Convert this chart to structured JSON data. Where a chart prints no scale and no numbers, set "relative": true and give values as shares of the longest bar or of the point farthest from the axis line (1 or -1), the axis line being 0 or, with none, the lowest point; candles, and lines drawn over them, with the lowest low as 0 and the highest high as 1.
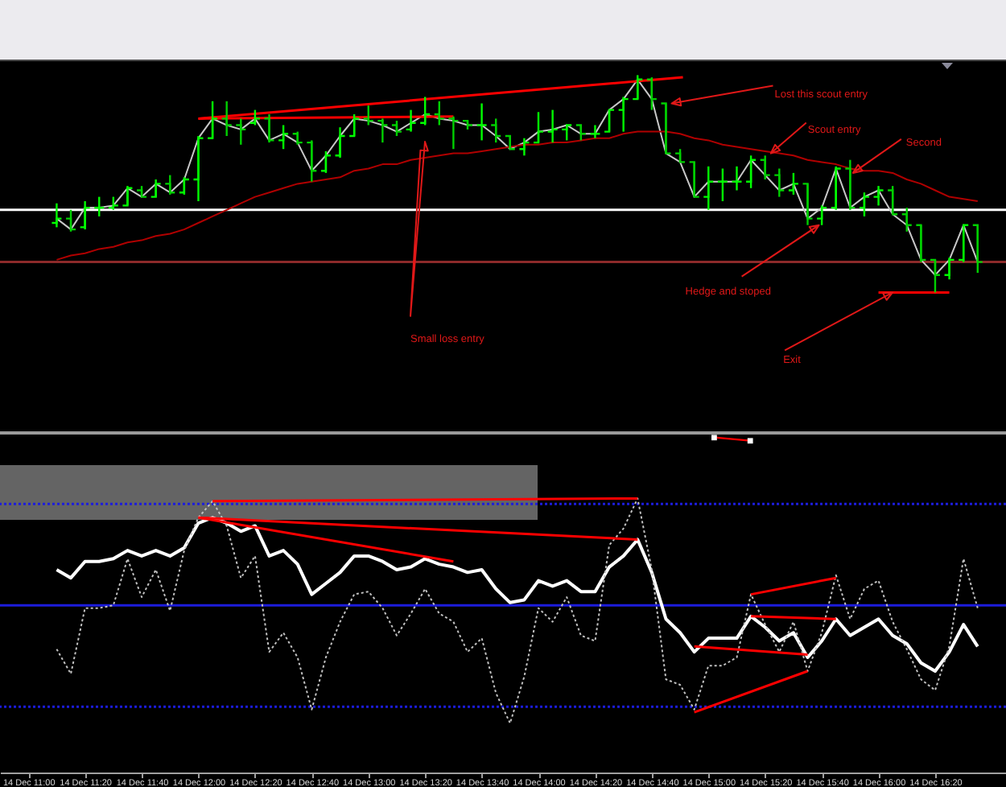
{
  "chart_data": [
    {
      "type": "candlestick",
      "relative": true,
      "tick_labels": false,
      "colors": [
        "#00ff00",
        "#00d000",
        "#00ff00",
        "#00ff00",
        "#00ff00",
        "#00ff00",
        "#00d000",
        "#00ff00",
        "#00d000",
        "#00ff00",
        "#00ff00",
        "#00ff00",
        "#00d000",
        "#00d000",
        "#00ff00",
        "#00d000",
        "#00ff00",
        "#00d000",
        "#00d000",
        "#00ff00",
        "#00ff00",
        "#00ff00",
        "#00d000",
        "#00d000",
        "#00d000",
        "#00ff00",
        "#00ff00",
        "#00d000",
        "#00d000",
        "#00d000",
        "#00ff00",
        "#00d000",
        "#00d000",
        "#00ff00",
        "#00ff00",
        "#00ff00",
        "#00ff00",
        "#00d000",
        "#00ff00",
        "#00ff00",
        "#00ff00",
        "#00ff00",
        "#00d000",
        "#00d000",
        "#00d000",
        "#00d000",
        "#00ff00",
        "#00ff00",
        "#00ff00",
        "#00ff00",
        "#00d000",
        "#00d000",
        "#00ff00",
        "#00d000",
        "#00ff00",
        "#00ff00",
        "#00d000",
        "#00ff00",
        "#00ff00",
        "#00d000",
        "#00d000",
        "#00d000",
        "#00d000",
        "#00ff00",
        "#00ff00",
        "#00d000"
      ],
      "xlim": [
        "--12-14T10:50",
        "--12-14T16:45"
      ],
      "x": [
        "--12-14T11:10",
        "--12-14T11:15",
        "--12-14T11:20",
        "--12-14T11:25",
        "--12-14T11:30",
        "--12-14T11:35",
        "--12-14T11:40",
        "--12-14T11:45",
        "--12-14T11:50",
        "--12-14T11:55",
        "--12-14T12:00",
        "--12-14T12:05",
        "--12-14T12:10",
        "--12-14T12:15",
        "--12-14T12:20",
        "--12-14T12:25",
        "--12-14T12:30",
        "--12-14T12:35",
        "--12-14T12:40",
        "--12-14T12:45",
        "--12-14T12:50",
        "--12-14T12:55",
        "--12-14T13:00",
        "--12-14T13:05",
        "--12-14T13:10",
        "--12-14T13:15",
        "--12-14T13:20",
        "--12-14T13:25",
        "--12-14T13:30",
        "--12-14T13:35",
        "--12-14T13:40",
        "--12-14T13:45",
        "--12-14T13:50",
        "--12-14T13:55",
        "--12-14T14:00",
        "--12-14T14:05",
        "--12-14T14:10",
        "--12-14T14:15",
        "--12-14T14:20",
        "--12-14T14:25",
        "--12-14T14:30",
        "--12-14T14:35",
        "--12-14T14:40",
        "--12-14T14:45",
        "--12-14T14:50",
        "--12-14T14:55",
        "--12-14T15:00",
        "--12-14T15:05",
        "--12-14T15:10",
        "--12-14T15:15",
        "--12-14T15:20",
        "--12-14T15:25",
        "--12-14T15:30",
        "--12-14T15:35",
        "--12-14T15:40",
        "--12-14T15:45",
        "--12-14T15:50",
        "--12-14T15:55",
        "--12-14T16:00",
        "--12-14T16:05",
        "--12-14T16:10",
        "--12-14T16:15",
        "--12-14T16:20",
        "--12-14T16:25",
        "--12-14T16:30",
        "--12-14T16:35"
      ],
      "ohlc": [
        [
          0.32,
          0.41,
          0.3,
          0.34
        ],
        [
          0.34,
          0.38,
          0.28,
          0.29
        ],
        [
          0.3,
          0.42,
          0.29,
          0.39
        ],
        [
          0.39,
          0.44,
          0.35,
          0.39
        ],
        [
          0.39,
          0.44,
          0.38,
          0.4
        ],
        [
          0.4,
          0.49,
          0.4,
          0.48
        ],
        [
          0.47,
          0.49,
          0.44,
          0.44
        ],
        [
          0.44,
          0.52,
          0.44,
          0.5
        ],
        [
          0.5,
          0.54,
          0.45,
          0.46
        ],
        [
          0.46,
          0.53,
          0.45,
          0.52
        ],
        [
          0.52,
          0.72,
          0.42,
          0.71
        ],
        [
          0.71,
          0.88,
          0.71,
          0.8
        ],
        [
          0.8,
          0.88,
          0.72,
          0.77
        ],
        [
          0.77,
          0.8,
          0.68,
          0.75
        ],
        [
          0.78,
          0.84,
          0.77,
          0.8
        ],
        [
          0.8,
          0.82,
          0.69,
          0.7
        ],
        [
          0.7,
          0.77,
          0.66,
          0.73
        ],
        [
          0.73,
          0.74,
          0.68,
          0.69
        ],
        [
          0.69,
          0.7,
          0.51,
          0.56
        ],
        [
          0.56,
          0.65,
          0.55,
          0.63
        ],
        [
          0.63,
          0.76,
          0.62,
          0.72
        ],
        [
          0.72,
          0.82,
          0.72,
          0.8
        ],
        [
          0.8,
          0.86,
          0.77,
          0.79
        ],
        [
          0.79,
          0.8,
          0.69,
          0.77
        ],
        [
          0.77,
          0.79,
          0.72,
          0.74
        ],
        [
          0.75,
          0.84,
          0.74,
          0.78
        ],
        [
          0.78,
          0.9,
          0.77,
          0.82
        ],
        [
          0.82,
          0.88,
          0.77,
          0.8
        ],
        [
          0.8,
          0.81,
          0.66,
          0.79
        ],
        [
          0.79,
          0.79,
          0.75,
          0.77
        ],
        [
          0.77,
          0.87,
          0.7,
          0.77
        ],
        [
          0.77,
          0.8,
          0.69,
          0.72
        ],
        [
          0.72,
          0.72,
          0.66,
          0.66
        ],
        [
          0.66,
          0.71,
          0.63,
          0.69
        ],
        [
          0.69,
          0.83,
          0.69,
          0.74
        ],
        [
          0.74,
          0.84,
          0.69,
          0.75
        ],
        [
          0.75,
          0.77,
          0.7,
          0.77
        ],
        [
          0.77,
          0.77,
          0.7,
          0.73
        ],
        [
          0.73,
          0.77,
          0.71,
          0.73
        ],
        [
          0.74,
          0.84,
          0.74,
          0.84
        ],
        [
          0.84,
          0.9,
          0.74,
          0.89
        ],
        [
          0.89,
          1.0,
          0.89,
          0.98
        ],
        [
          0.98,
          0.99,
          0.84,
          0.89
        ],
        [
          0.87,
          0.87,
          0.64,
          0.64
        ],
        [
          0.64,
          0.66,
          0.6,
          0.6
        ],
        [
          0.6,
          0.6,
          0.44,
          0.44
        ],
        [
          0.44,
          0.58,
          0.38,
          0.51
        ],
        [
          0.51,
          0.57,
          0.42,
          0.51
        ],
        [
          0.51,
          0.58,
          0.47,
          0.51
        ],
        [
          0.51,
          0.63,
          0.48,
          0.61
        ],
        [
          0.61,
          0.63,
          0.52,
          0.54
        ],
        [
          0.54,
          0.57,
          0.44,
          0.47
        ],
        [
          0.47,
          0.55,
          0.45,
          0.5
        ],
        [
          0.5,
          0.5,
          0.31,
          0.34
        ],
        [
          0.34,
          0.4,
          0.31,
          0.39
        ],
        [
          0.39,
          0.58,
          0.38,
          0.57
        ],
        [
          0.57,
          0.61,
          0.38,
          0.39
        ],
        [
          0.39,
          0.46,
          0.35,
          0.44
        ],
        [
          0.44,
          0.49,
          0.4,
          0.47
        ],
        [
          0.47,
          0.49,
          0.36,
          0.36
        ],
        [
          0.36,
          0.39,
          0.28,
          0.31
        ],
        [
          0.31,
          0.31,
          0.14,
          0.15
        ],
        [
          0.15,
          0.15,
          0.0,
          0.08
        ],
        [
          0.08,
          0.16,
          0.06,
          0.15
        ],
        [
          0.15,
          0.31,
          0.14,
          0.31
        ],
        [
          0.31,
          0.31,
          0.09,
          0.14
        ]
      ],
      "series": [
        {
          "type": "line",
          "color": "#c8c8c8",
          "values": [
            0.34,
            0.29,
            0.39,
            0.39,
            0.4,
            0.48,
            0.44,
            0.5,
            0.46,
            0.52,
            0.71,
            0.8,
            0.77,
            0.75,
            0.8,
            0.7,
            0.73,
            0.69,
            0.56,
            0.63,
            0.72,
            0.8,
            0.79,
            0.77,
            0.74,
            0.78,
            0.82,
            0.8,
            0.79,
            0.77,
            0.77,
            0.72,
            0.66,
            0.69,
            0.74,
            0.75,
            0.77,
            0.73,
            0.73,
            0.84,
            0.89,
            0.98,
            0.89,
            0.64,
            0.6,
            0.44,
            0.51,
            0.51,
            0.51,
            0.61,
            0.54,
            0.47,
            0.5,
            0.34,
            0.39,
            0.57,
            0.39,
            0.44,
            0.47,
            0.36,
            0.31,
            0.15,
            0.08,
            0.15,
            0.31,
            0.14
          ]
        },
        {
          "type": "line",
          "color": "#b00000",
          "values": [
            0.15,
            0.17,
            0.18,
            0.2,
            0.21,
            0.23,
            0.24,
            0.26,
            0.27,
            0.29,
            0.32,
            0.35,
            0.38,
            0.41,
            0.44,
            0.46,
            0.48,
            0.5,
            0.51,
            0.52,
            0.53,
            0.56,
            0.57,
            0.59,
            0.59,
            0.61,
            0.62,
            0.63,
            0.64,
            0.64,
            0.65,
            0.66,
            0.67,
            0.68,
            0.68,
            0.69,
            0.69,
            0.7,
            0.71,
            0.71,
            0.73,
            0.74,
            0.74,
            0.74,
            0.73,
            0.71,
            0.7,
            0.68,
            0.67,
            0.66,
            0.65,
            0.64,
            0.63,
            0.61,
            0.6,
            0.59,
            0.57,
            0.56,
            0.56,
            0.55,
            0.52,
            0.5,
            0.47,
            0.44,
            0.43,
            0.42
          ]
        },
        {
          "type": "line",
          "color": "#ff0000",
          "x": [
            "--12-14T12:00",
            "--12-14T13:30"
          ],
          "values": [
            0.8,
            0.81
          ]
        },
        {
          "type": "line",
          "color": "#ff0000",
          "x": [
            "--12-14T12:00",
            "--12-14T14:51"
          ],
          "values": [
            0.8,
            0.99
          ]
        },
        {
          "type": "line",
          "color": "#ff0000",
          "x": [
            "--12-14T16:00",
            "--12-14T16:25"
          ],
          "values": [
            0.0,
            0.0
          ]
        }
      ],
      "ref_lines": [
        {
          "axis": "y",
          "value": 0.38,
          "color": "#ffffff"
        },
        {
          "axis": "y",
          "value": 0.14,
          "color": "#8c2a2a"
        }
      ],
      "annotations": [
        {
          "text": "Lost this scout entry",
          "x": "--12-14T14:47",
          "y": 0.87
        },
        {
          "text": "Scout entry",
          "x": "--12-14T15:22",
          "y": 0.64
        },
        {
          "text": "Second",
          "x": "--12-14T15:51",
          "y": 0.55
        },
        {
          "text": "Hedge and stoped",
          "x": "--12-14T15:39",
          "y": 0.31
        },
        "Small loss entry",
        {
          "text": "Exit",
          "x": "--12-14T16:05",
          "y": 0.0
        }
      ]
    },
    {
      "type": "line",
      "relative": true,
      "tick_labels": "x",
      "xlim": [
        "--12-14T10:50",
        "--12-14T16:45"
      ],
      "xticks": [
        {
          "value": "--12-14T11:00",
          "label": "14 Dec 11:00"
        },
        {
          "value": "--12-14T11:20",
          "label": "14 Dec 11:20"
        },
        {
          "value": "--12-14T11:40",
          "label": "14 Dec 11:40"
        },
        {
          "value": "--12-14T12:00",
          "label": "14 Dec 12:00"
        },
        {
          "value": "--12-14T12:20",
          "label": "14 Dec 12:20"
        },
        {
          "value": "--12-14T12:40",
          "label": "14 Dec 12:40"
        },
        {
          "value": "--12-14T13:00",
          "label": "14 Dec 13:00"
        },
        {
          "value": "--12-14T13:20",
          "label": "14 Dec 13:20"
        },
        {
          "value": "--12-14T13:40",
          "label": "14 Dec 13:40"
        },
        {
          "value": "--12-14T14:00",
          "label": "14 Dec 14:00"
        },
        {
          "value": "--12-14T14:20",
          "label": "14 Dec 14:20"
        },
        {
          "value": "--12-14T14:40",
          "label": "14 Dec 14:40"
        },
        {
          "value": "--12-14T15:00",
          "label": "14 Dec 15:00"
        },
        {
          "value": "--12-14T15:20",
          "label": "14 Dec 15:20"
        },
        {
          "value": "--12-14T15:40",
          "label": "14 Dec 15:40"
        },
        {
          "value": "--12-14T16:00",
          "label": "14 Dec 16:00"
        },
        {
          "value": "--12-14T16:20",
          "label": "14 Dec 16:20"
        }
      ],
      "x": [
        "--12-14T11:10",
        "--12-14T11:15",
        "--12-14T11:20",
        "--12-14T11:25",
        "--12-14T11:30",
        "--12-14T11:35",
        "--12-14T11:40",
        "--12-14T11:45",
        "--12-14T11:50",
        "--12-14T11:55",
        "--12-14T12:00",
        "--12-14T12:05",
        "--12-14T12:10",
        "--12-14T12:15",
        "--12-14T12:20",
        "--12-14T12:25",
        "--12-14T12:30",
        "--12-14T12:35",
        "--12-14T12:40",
        "--12-14T12:45",
        "--12-14T12:50",
        "--12-14T12:55",
        "--12-14T13:00",
        "--12-14T13:05",
        "--12-14T13:10",
        "--12-14T13:15",
        "--12-14T13:20",
        "--12-14T13:25",
        "--12-14T13:30",
        "--12-14T13:35",
        "--12-14T13:40",
        "--12-14T13:45",
        "--12-14T13:50",
        "--12-14T13:55",
        "--12-14T14:00",
        "--12-14T14:05",
        "--12-14T14:10",
        "--12-14T14:15",
        "--12-14T14:20",
        "--12-14T14:25",
        "--12-14T14:30",
        "--12-14T14:35",
        "--12-14T14:40",
        "--12-14T14:45",
        "--12-14T14:50",
        "--12-14T14:55",
        "--12-14T15:00",
        "--12-14T15:05",
        "--12-14T15:10",
        "--12-14T15:15",
        "--12-14T15:20",
        "--12-14T15:25",
        "--12-14T15:30",
        "--12-14T15:35",
        "--12-14T15:40",
        "--12-14T15:45",
        "--12-14T15:50",
        "--12-14T15:55",
        "--12-14T16:00",
        "--12-14T16:05",
        "--12-14T16:10",
        "--12-14T16:15",
        "--12-14T16:20",
        "--12-14T16:25",
        "--12-14T16:30",
        "--12-14T16:35"
      ],
      "series": [
        {
          "color": "#ffffff",
          "values": [
            0.74,
            0.71,
            0.77,
            0.77,
            0.78,
            0.81,
            0.79,
            0.81,
            0.79,
            0.82,
            0.91,
            0.93,
            0.91,
            0.88,
            0.9,
            0.79,
            0.81,
            0.76,
            0.65,
            0.69,
            0.73,
            0.79,
            0.79,
            0.77,
            0.74,
            0.75,
            0.78,
            0.76,
            0.75,
            0.73,
            0.74,
            0.67,
            0.62,
            0.63,
            0.7,
            0.68,
            0.7,
            0.66,
            0.66,
            0.75,
            0.79,
            0.85,
            0.73,
            0.56,
            0.51,
            0.44,
            0.49,
            0.49,
            0.49,
            0.57,
            0.53,
            0.48,
            0.51,
            0.42,
            0.48,
            0.56,
            0.5,
            0.53,
            0.56,
            0.5,
            0.47,
            0.4,
            0.37,
            0.44,
            0.54,
            0.46
          ]
        },
        {
          "color": "#c0c0c0",
          "line_style": "dotted",
          "values": [
            0.45,
            0.36,
            0.6,
            0.6,
            0.61,
            0.78,
            0.64,
            0.74,
            0.59,
            0.81,
            0.93,
            0.99,
            0.9,
            0.71,
            0.79,
            0.44,
            0.51,
            0.42,
            0.23,
            0.42,
            0.55,
            0.65,
            0.66,
            0.6,
            0.5,
            0.58,
            0.67,
            0.58,
            0.55,
            0.44,
            0.49,
            0.29,
            0.18,
            0.35,
            0.6,
            0.55,
            0.64,
            0.5,
            0.48,
            0.83,
            0.89,
            1.0,
            0.74,
            0.34,
            0.32,
            0.23,
            0.39,
            0.39,
            0.42,
            0.65,
            0.54,
            0.44,
            0.55,
            0.37,
            0.51,
            0.72,
            0.56,
            0.67,
            0.7,
            0.55,
            0.45,
            0.34,
            0.3,
            0.46,
            0.78,
            0.6
          ]
        },
        {
          "color": "#ff0000",
          "x": [
            "--12-14T12:05",
            "--12-14T14:35"
          ],
          "values": [
            0.99,
            1.0
          ]
        },
        {
          "color": "#ff0000",
          "x": [
            "--12-14T12:00",
            "--12-14T14:35"
          ],
          "values": [
            0.93,
            0.85
          ]
        },
        {
          "color": "#ff0000",
          "x": [
            "--12-14T12:00",
            "--12-14T13:30"
          ],
          "values": [
            0.93,
            0.77
          ]
        },
        {
          "color": "#ff0000",
          "x": [
            "--12-14T15:15",
            "--12-14T15:45"
          ],
          "values": [
            0.65,
            0.71
          ]
        },
        {
          "color": "#ff0000",
          "x": [
            "--12-14T15:15",
            "--12-14T15:45"
          ],
          "values": [
            0.57,
            0.56
          ]
        },
        {
          "color": "#ff0000",
          "x": [
            "--12-14T14:55",
            "--12-14T15:35"
          ],
          "values": [
            0.46,
            0.43
          ]
        },
        {
          "color": "#ff0000",
          "x": [
            "--12-14T14:55",
            "--12-14T15:35"
          ],
          "values": [
            0.22,
            0.37
          ]
        }
      ],
      "ref_lines": [
        {
          "axis": "y",
          "value": 0.98,
          "color": "#1c1cdc",
          "line_style": "dotted"
        },
        {
          "axis": "y",
          "value": 0.61,
          "color": "#1c1cdc"
        },
        {
          "axis": "y",
          "value": 0.24,
          "color": "#1c1cdc",
          "line_style": "dotted"
        }
      ]
    }
  ]
}
